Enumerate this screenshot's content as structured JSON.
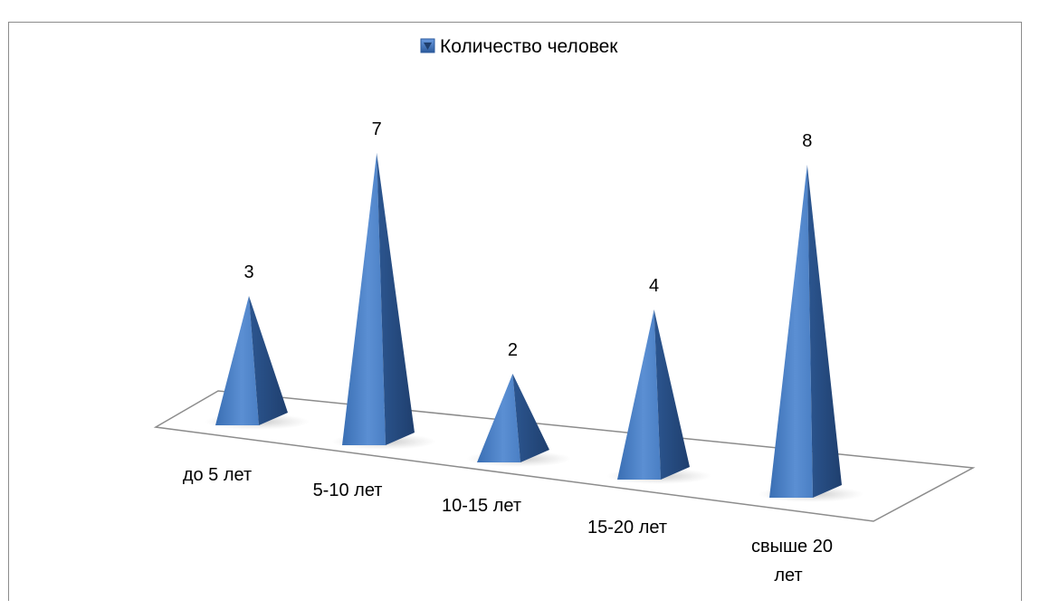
{
  "chart_data": {
    "type": "bar",
    "style": "3d-pyramid",
    "title": "",
    "xlabel": "",
    "ylabel": "",
    "legend": {
      "position": "top",
      "entries": [
        "Количество человек"
      ]
    },
    "categories": [
      "до 5 лет",
      "5-10 лет",
      "10-15 лет",
      "15-20 лет",
      "свыше 20 лет"
    ],
    "series": [
      {
        "name": "Количество человек",
        "values": [
          3,
          7,
          2,
          4,
          8
        ],
        "color": "#4a7fc1"
      }
    ],
    "grid": false,
    "data_labels": true
  }
}
